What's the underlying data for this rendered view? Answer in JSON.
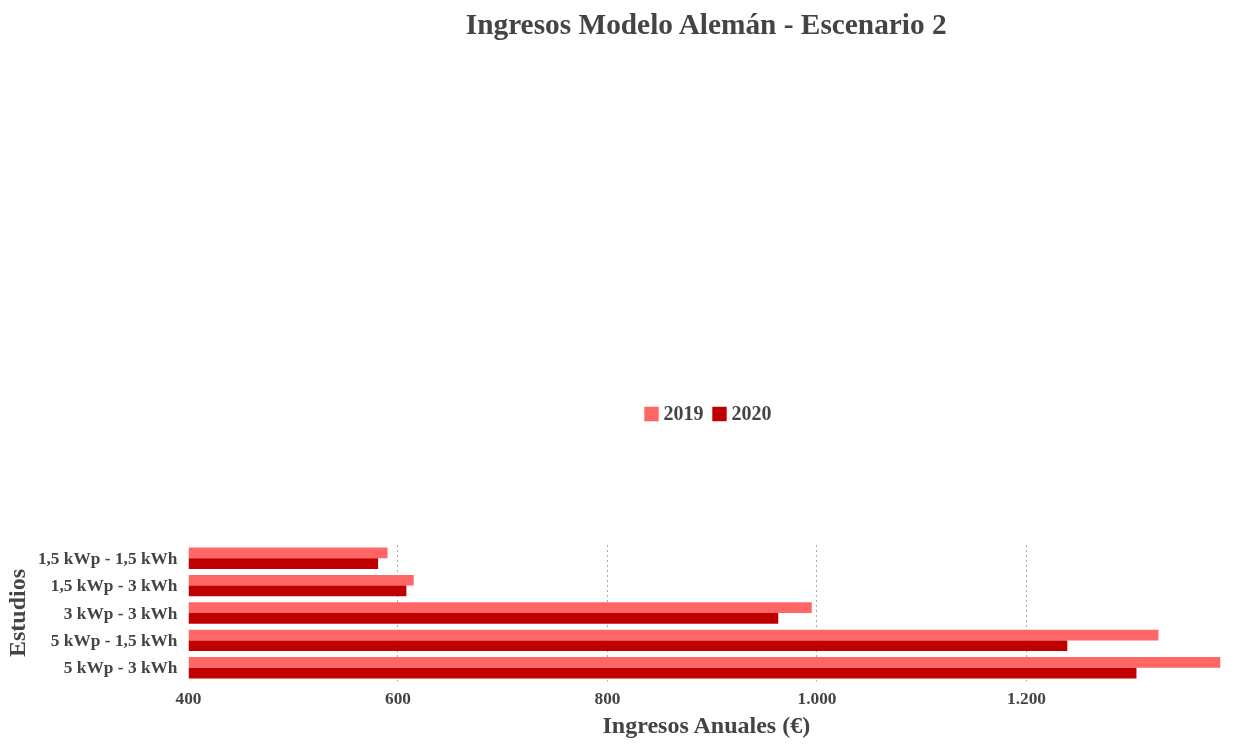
{
  "chart_data": {
    "type": "bar",
    "orientation": "horizontal",
    "title": "Ingresos Modelo Alemán - Escenario 2",
    "xlabel": "Ingresos Anuales (€)",
    "ylabel": "Estudios",
    "categories": [
      "1,5 kWp - 1,5 kWh",
      "1,5 kWp - 3 kWh",
      "3 kWp - 3 kWh",
      "5 kWp - 1,5 kWh",
      "5 kWp - 3 kWh"
    ],
    "series": [
      {
        "name": "2019",
        "color": "#ff6666",
        "values": [
          590,
          615,
          995,
          1326,
          1385
        ]
      },
      {
        "name": "2020",
        "color": "#c00000",
        "values": [
          581,
          608,
          963,
          1239,
          1305
        ]
      }
    ],
    "xlim": [
      400,
      1390
    ],
    "xticks": [
      400,
      600,
      800,
      {
        "value": 1000,
        "label": "1.000"
      },
      {
        "value": 1200,
        "label": "1.200"
      }
    ],
    "grid": "x",
    "legend": "top"
  }
}
